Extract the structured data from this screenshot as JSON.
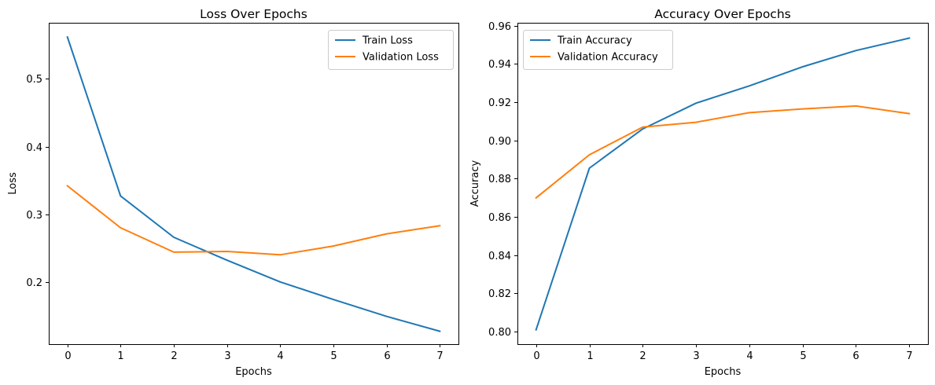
{
  "chart_data": [
    {
      "type": "line",
      "title": "Loss Over Epochs",
      "xlabel": "Epochs",
      "ylabel": "Loss",
      "x": [
        0,
        1,
        2,
        3,
        4,
        5,
        6,
        7
      ],
      "xlim": [
        -0.35,
        7.35
      ],
      "ylim": [
        0.108,
        0.583
      ],
      "xticks": [
        "0",
        "1",
        "2",
        "3",
        "4",
        "5",
        "6",
        "7"
      ],
      "yticks": [
        "0.2",
        "0.3",
        "0.4",
        "0.5"
      ],
      "ytick_values": [
        0.2,
        0.3,
        0.4,
        0.5
      ],
      "grid": false,
      "legend": "top-right",
      "series": [
        {
          "name": "Train Loss",
          "color": "#1f77b4",
          "values": [
            0.562,
            0.327,
            0.266,
            0.232,
            0.2,
            0.174,
            0.149,
            0.127
          ]
        },
        {
          "name": "Validation Loss",
          "color": "#ff7f0e",
          "values": [
            0.342,
            0.28,
            0.244,
            0.245,
            0.24,
            0.253,
            0.271,
            0.283
          ]
        }
      ]
    },
    {
      "type": "line",
      "title": "Accuracy Over Epochs",
      "xlabel": "Epochs",
      "ylabel": "Accuracy",
      "x": [
        0,
        1,
        2,
        3,
        4,
        5,
        6,
        7
      ],
      "xlim": [
        -0.35,
        7.35
      ],
      "ylim": [
        0.7935,
        0.9615
      ],
      "xticks": [
        "0",
        "1",
        "2",
        "3",
        "4",
        "5",
        "6",
        "7"
      ],
      "yticks": [
        "0.80",
        "0.82",
        "0.84",
        "0.86",
        "0.88",
        "0.90",
        "0.92",
        "0.94",
        "0.96"
      ],
      "ytick_values": [
        0.8,
        0.82,
        0.84,
        0.86,
        0.88,
        0.9,
        0.92,
        0.94,
        0.96
      ],
      "grid": false,
      "legend": "top-left",
      "series": [
        {
          "name": "Train Accuracy",
          "color": "#1f77b4",
          "values": [
            0.801,
            0.8855,
            0.906,
            0.9195,
            0.9285,
            0.9385,
            0.947,
            0.9535
          ]
        },
        {
          "name": "Validation Accuracy",
          "color": "#ff7f0e",
          "values": [
            0.87,
            0.8925,
            0.907,
            0.9095,
            0.9145,
            0.9165,
            0.918,
            0.914
          ]
        }
      ]
    }
  ]
}
